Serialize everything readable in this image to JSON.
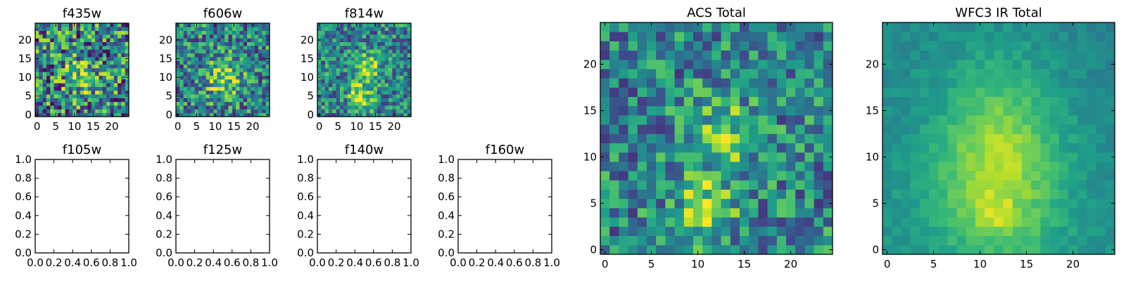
{
  "chart_data": [
    {
      "type": "heatmap",
      "title": "f435w",
      "xticks": [
        0,
        5,
        10,
        15,
        20
      ],
      "yticks": [
        0,
        5,
        10,
        15,
        20
      ],
      "grid_size": 25,
      "seed": 11,
      "amp": 0.55,
      "noise": 0.45,
      "pattern": "blob",
      "colormap": "viridis"
    },
    {
      "type": "heatmap",
      "title": "f606w",
      "xticks": [
        0,
        5,
        10,
        15,
        20
      ],
      "yticks": [
        0,
        5,
        10,
        15,
        20
      ],
      "grid_size": 25,
      "seed": 23,
      "amp": 0.7,
      "noise": 0.35,
      "pattern": "blob",
      "colormap": "viridis"
    },
    {
      "type": "heatmap",
      "title": "f814w",
      "xticks": [
        0,
        5,
        10,
        15,
        20
      ],
      "yticks": [
        0,
        5,
        10,
        15,
        20
      ],
      "grid_size": 25,
      "seed": 37,
      "amp": 0.85,
      "noise": 0.3,
      "pattern": "streak",
      "colormap": "viridis"
    },
    {
      "type": "empty",
      "title": "f105w",
      "xlim": [
        0.0,
        1.0
      ],
      "ylim": [
        0.0,
        1.0
      ],
      "xticks": [
        "0.0",
        "0.2",
        "0.4",
        "0.6",
        "0.8",
        "1.0"
      ],
      "yticks": [
        "0.0",
        "0.2",
        "0.4",
        "0.6",
        "0.8",
        "1.0"
      ]
    },
    {
      "type": "empty",
      "title": "f125w",
      "xlim": [
        0.0,
        1.0
      ],
      "ylim": [
        0.0,
        1.0
      ],
      "xticks": [
        "0.0",
        "0.2",
        "0.4",
        "0.6",
        "0.8",
        "1.0"
      ],
      "yticks": [
        "0.0",
        "0.2",
        "0.4",
        "0.6",
        "0.8",
        "1.0"
      ]
    },
    {
      "type": "empty",
      "title": "f140w",
      "xlim": [
        0.0,
        1.0
      ],
      "ylim": [
        0.0,
        1.0
      ],
      "xticks": [
        "0.0",
        "0.2",
        "0.4",
        "0.6",
        "0.8",
        "1.0"
      ],
      "yticks": [
        "0.0",
        "0.2",
        "0.4",
        "0.6",
        "0.8",
        "1.0"
      ]
    },
    {
      "type": "empty",
      "title": "f160w",
      "xlim": [
        0.0,
        1.0
      ],
      "ylim": [
        0.0,
        1.0
      ],
      "xticks": [
        "0.0",
        "0.2",
        "0.4",
        "0.6",
        "0.8",
        "1.0"
      ],
      "yticks": [
        "0.0",
        "0.2",
        "0.4",
        "0.6",
        "0.8",
        "1.0"
      ]
    },
    {
      "type": "heatmap",
      "title": "ACS Total",
      "xticks": [
        0,
        5,
        10,
        15,
        20
      ],
      "yticks": [
        0,
        5,
        10,
        15,
        20
      ],
      "grid_size": 25,
      "seed": 51,
      "amp": 0.7,
      "noise": 0.3,
      "pattern": "streak",
      "colormap": "viridis"
    },
    {
      "type": "heatmap",
      "title": "WFC3 IR Total",
      "xticks": [
        0,
        5,
        10,
        15,
        20
      ],
      "yticks": [
        0,
        5,
        10,
        15,
        20
      ],
      "grid_size": 25,
      "seed": 67,
      "amp": 0.85,
      "noise": 0.06,
      "pattern": "smooth",
      "colormap": "viridis"
    }
  ]
}
